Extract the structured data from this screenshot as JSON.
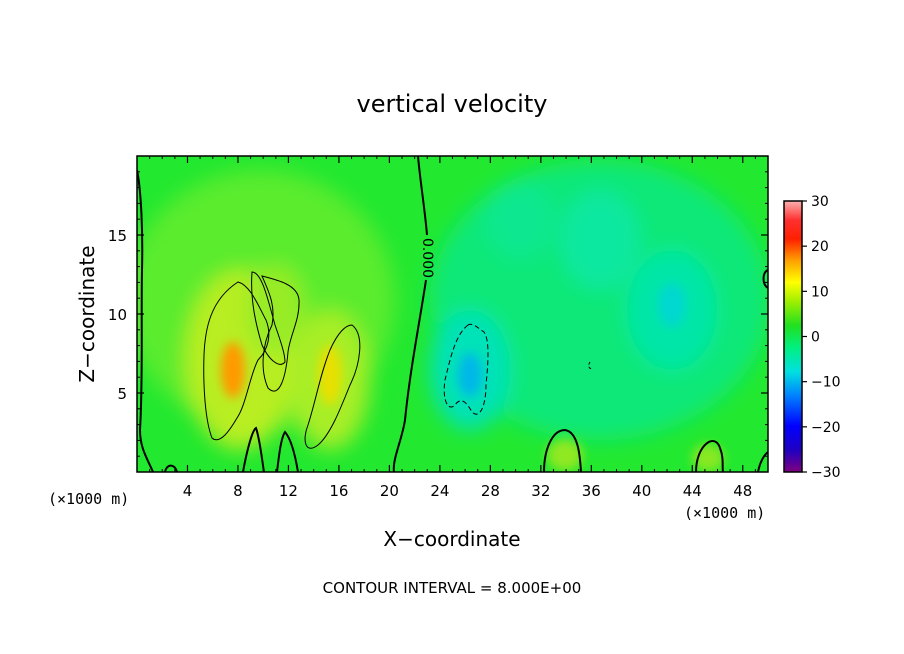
{
  "chart_data": {
    "type": "heatmap",
    "title": "vertical velocity",
    "xlabel": "X−coordinate",
    "ylabel": "Z−coordinate",
    "x_unit": "(×1000 m)",
    "z_unit": "(×1000 m)",
    "xlim": [
      0,
      50
    ],
    "ylim": [
      0,
      20
    ],
    "x_ticks": [
      "4",
      "8",
      "12",
      "16",
      "20",
      "24",
      "28",
      "32",
      "36",
      "40",
      "44",
      "48"
    ],
    "y_ticks": [
      "5",
      "10",
      "15"
    ],
    "colorbar": {
      "range": [
        -30,
        30
      ],
      "ticks": [
        "30",
        "20",
        "10",
        "0",
        "−10",
        "−20",
        "−30"
      ]
    },
    "zero_contour_label": "0.000",
    "contour_interval_text": "CONTOUR INTERVAL = 8.000E+00",
    "features": [
      {
        "sign": "positive",
        "x": 7.5,
        "z": 7.0,
        "peak": 10
      },
      {
        "sign": "positive",
        "x": 15.5,
        "z": 5.5,
        "peak": 8
      },
      {
        "sign": "positive",
        "x": 10.5,
        "z": 9.5,
        "peak": 7
      },
      {
        "sign": "negative",
        "x": 26.0,
        "z": 6.0,
        "peak": -10
      },
      {
        "sign": "negative",
        "x": 42.5,
        "z": 11.0,
        "peak": -7
      },
      {
        "sign": "positive",
        "x": 33.5,
        "z": 1.5,
        "peak": 5
      },
      {
        "sign": "positive",
        "x": 45.0,
        "z": 1.2,
        "peak": 5
      }
    ]
  }
}
